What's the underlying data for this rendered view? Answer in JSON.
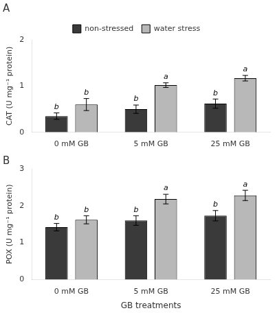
{
  "chart_data": [
    {
      "type": "bar",
      "title": "A",
      "categories": [
        "0 mM GB",
        "5 mM GB",
        "25 mM GB"
      ],
      "series": [
        {
          "name": "non-stressed",
          "color": "#3a3a3a",
          "values": [
            0.35,
            0.5,
            0.62
          ],
          "errors": [
            0.07,
            0.09,
            0.1
          ],
          "annotations": [
            "b",
            "b",
            "b"
          ]
        },
        {
          "name": "water stress",
          "color": "#b8b8b8",
          "values": [
            0.6,
            1.02,
            1.17
          ],
          "errors": [
            0.13,
            0.05,
            0.06
          ],
          "annotations": [
            "b",
            "a",
            "a"
          ]
        }
      ],
      "ylabel": "CAT (U mg⁻¹ protein)",
      "ylim": [
        0,
        2.0
      ],
      "yticks": [
        0,
        1,
        2
      ],
      "grid": false,
      "legend": "top"
    },
    {
      "type": "bar",
      "title": "B",
      "categories": [
        "0 mM GB",
        "5 mM GB",
        "25 mM GB"
      ],
      "series": [
        {
          "name": "non-stressed",
          "color": "#3a3a3a",
          "values": [
            1.42,
            1.6,
            1.73
          ],
          "errors": [
            0.1,
            0.13,
            0.14
          ],
          "annotations": [
            "b",
            "b",
            "b"
          ]
        },
        {
          "name": "water stress",
          "color": "#b8b8b8",
          "values": [
            1.62,
            2.18,
            2.28
          ],
          "errors": [
            0.11,
            0.13,
            0.14
          ],
          "annotations": [
            "b",
            "a",
            "a"
          ]
        }
      ],
      "xlabel": "GB treatments",
      "ylabel": "POX (U mg⁻¹ protein)",
      "ylim": [
        0,
        3.0
      ],
      "yticks": [
        0,
        1,
        2,
        3
      ],
      "grid": false
    }
  ]
}
